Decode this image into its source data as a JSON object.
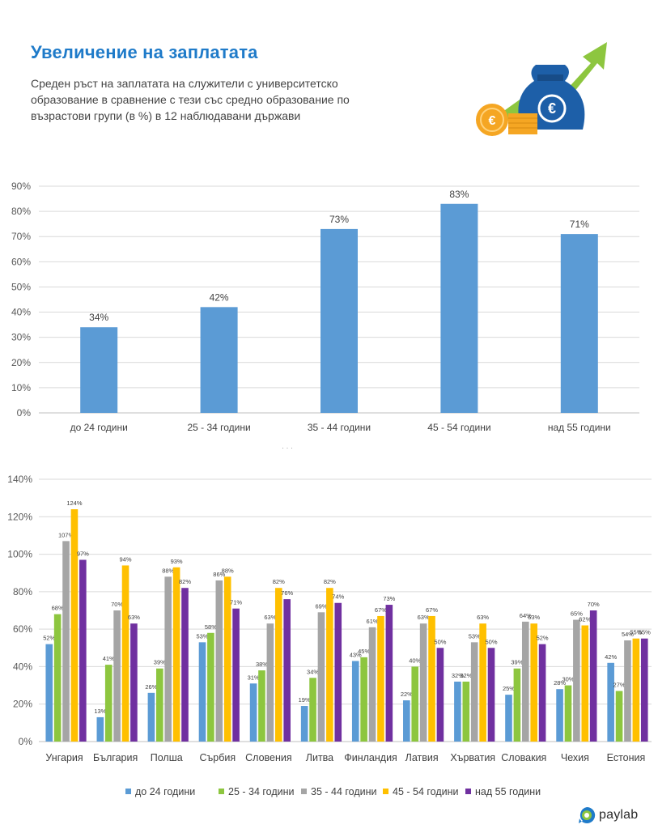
{
  "header": {
    "title": "Увеличение на заплатата",
    "subtitle": "Среден ръст на заплатата на служители с университетско образование в сравнение с тези със средно образование по възрастови групи (в %) в 12 наблюдавани държави"
  },
  "logo": {
    "text": "paylab"
  },
  "colors": {
    "blue": "#5b9bd5",
    "green": "#8dc63f",
    "gray": "#a5a5a5",
    "yellow": "#ffc000",
    "purple": "#7030a0",
    "title": "#1f7bc9"
  },
  "chart_data": [
    {
      "type": "bar",
      "categories": [
        "до 24 години",
        "25 - 34 години",
        "35 - 44 години",
        "45 - 54 години",
        "над 55 години"
      ],
      "values": [
        34,
        42,
        73,
        83,
        71
      ],
      "value_labels": [
        "34%",
        "42%",
        "73%",
        "83%",
        "71%"
      ],
      "ylim": [
        0,
        90
      ],
      "yticks": [
        "0%",
        "10%",
        "20%",
        "30%",
        "40%",
        "50%",
        "60%",
        "70%",
        "80%",
        "90%"
      ],
      "grid": true
    },
    {
      "type": "bar",
      "categories": [
        "Унгария",
        "България",
        "Полша",
        "Сърбия",
        "Словения",
        "Литва",
        "Финландия",
        "Латвия",
        "Хърватия",
        "Словакия",
        "Чехия",
        "Естония"
      ],
      "series": [
        {
          "name": "до 24 години",
          "values": [
            52,
            13,
            26,
            53,
            31,
            19,
            43,
            22,
            32,
            25,
            28,
            42
          ]
        },
        {
          "name": "25 - 34 години",
          "values": [
            68,
            41,
            39,
            58,
            38,
            34,
            45,
            40,
            32,
            39,
            30,
            27
          ]
        },
        {
          "name": "35 - 44 години",
          "values": [
            107,
            70,
            88,
            86,
            63,
            69,
            61,
            63,
            53,
            64,
            65,
            54
          ]
        },
        {
          "name": "45 - 54 години",
          "values": [
            124,
            94,
            93,
            88,
            82,
            82,
            67,
            67,
            63,
            63,
            62,
            55
          ]
        },
        {
          "name": "над 55 години",
          "values": [
            97,
            63,
            82,
            71,
            76,
            74,
            73,
            50,
            50,
            52,
            70,
            55
          ]
        }
      ],
      "ylim": [
        0,
        140
      ],
      "yticks": [
        "0%",
        "20%",
        "40%",
        "60%",
        "80%",
        "100%",
        "120%",
        "140%"
      ],
      "grid": true,
      "legend": "bottom"
    }
  ]
}
